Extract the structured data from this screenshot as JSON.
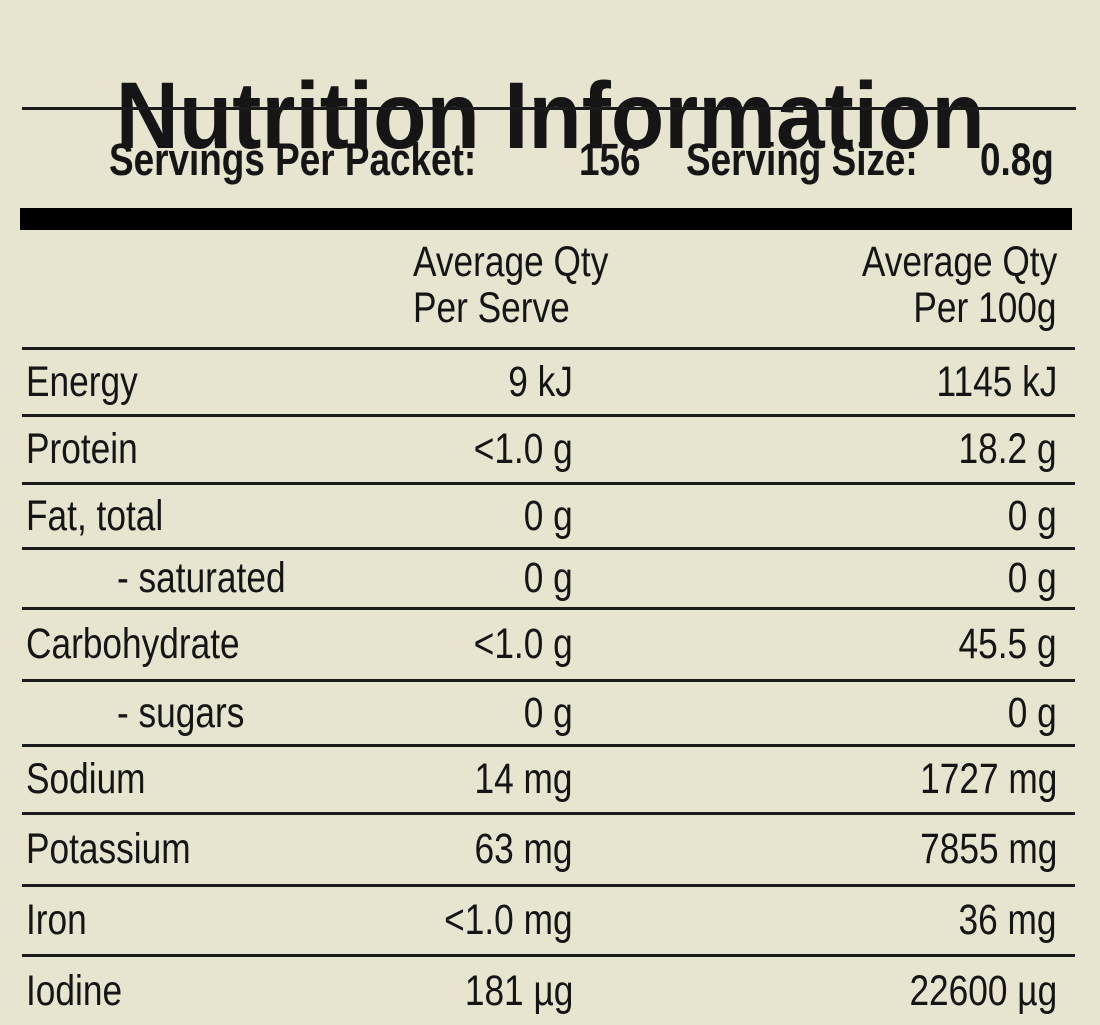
{
  "title": "Nutrition Information",
  "servings": {
    "label": "Servings Per Packet:",
    "value": "156"
  },
  "serving_size": {
    "label": "Serving Size:",
    "value": "0.8g"
  },
  "columns": {
    "per_serve": {
      "line1": "Average Qty",
      "line2": "Per Serve"
    },
    "per_100g": {
      "line1": "Average Qty",
      "line2": "Per 100g"
    }
  },
  "rows": [
    {
      "label": "Energy",
      "per_serve": "9 kJ",
      "per_100g": "1145 kJ"
    },
    {
      "label": "Protein",
      "per_serve": "<1.0 g",
      "per_100g": "18.2 g"
    },
    {
      "label": "Fat, total",
      "per_serve": "0 g",
      "per_100g": "0 g"
    },
    {
      "label": "- saturated",
      "per_serve": "0 g",
      "per_100g": "0 g"
    },
    {
      "label": "Carbohydrate",
      "per_serve": "<1.0 g",
      "per_100g": "45.5 g"
    },
    {
      "label": "- sugars",
      "per_serve": "0 g",
      "per_100g": "0 g"
    },
    {
      "label": "Sodium",
      "per_serve": "14 mg",
      "per_100g": "1727 mg"
    },
    {
      "label": "Potassium",
      "per_serve": "63 mg",
      "per_100g": "7855 mg"
    },
    {
      "label": "Iron",
      "per_serve": "<1.0 mg",
      "per_100g": "36 mg"
    },
    {
      "label": "Iodine",
      "per_serve": "181 µg",
      "per_100g": "22600 µg"
    }
  ],
  "colors": {
    "background": "#e7e4cf",
    "text": "#151515",
    "rule": "#1b1b1b",
    "bar": "#000000"
  }
}
